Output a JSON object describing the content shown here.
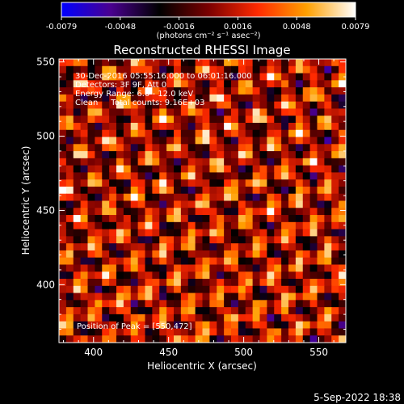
{
  "colorbar": {
    "tick_labels": [
      "-0.0079",
      "-0.0048",
      "-0.0016",
      "0.0016",
      "0.0048",
      "0.0079"
    ],
    "unit_label": "(photons cm⁻² s⁻¹ asec⁻²)",
    "range": [
      -0.0079,
      0.0079
    ],
    "colormap": [
      "#0000ff",
      "#4a0090",
      "#000000",
      "#7a0000",
      "#ff2a00",
      "#ffa000",
      "#ffffff"
    ]
  },
  "annotations": {
    "line1": "30-Dec-2016 05:55:16.000 to 06:01:16.000",
    "line2": "Detectors: 3F 9F, Att 0",
    "line3": "Energy Range: 6.0 - 12.0 keV",
    "line4": "Clean     Total counts: 9.16E+03",
    "peak": "Position of Peak = [550,472]"
  },
  "footer": {
    "date": "5-Sep-2022 18:38"
  },
  "chart_data": {
    "type": "heatmap",
    "title": "Reconstructed RHESSI Image",
    "xlabel": "Heliocentric X (arcsec)",
    "ylabel": "Heliocentric Y (arcsec)",
    "xlim": [
      377,
      568
    ],
    "ylim": [
      361,
      552
    ],
    "xticks": [
      400,
      450,
      500,
      550
    ],
    "yticks": [
      400,
      450,
      500,
      550
    ],
    "peak_position": [
      550,
      472
    ],
    "value_range": [
      -0.0079,
      0.0079
    ]
  }
}
